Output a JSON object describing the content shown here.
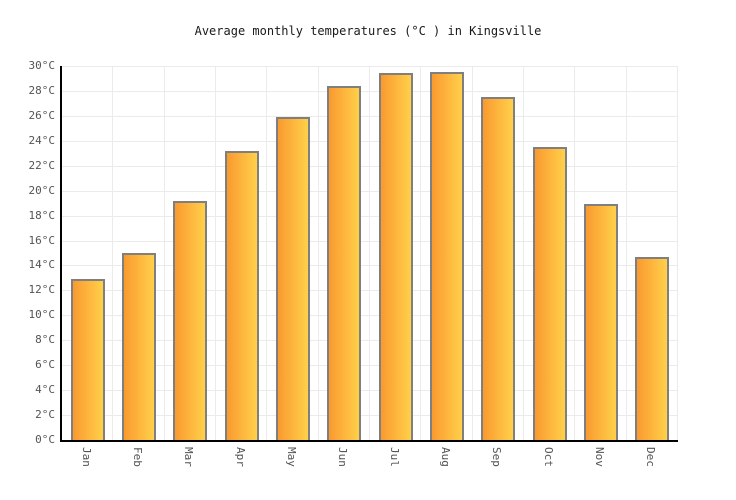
{
  "chart_data": {
    "type": "bar",
    "title": "Average monthly temperatures (°C ) in Kingsville",
    "categories": [
      "Jan",
      "Feb",
      "Mar",
      "Apr",
      "May",
      "Jun",
      "Jul",
      "Aug",
      "Sep",
      "Oct",
      "Nov",
      "Dec"
    ],
    "values": [
      12.9,
      15.0,
      19.2,
      23.2,
      25.9,
      28.4,
      29.4,
      29.5,
      27.5,
      23.5,
      18.9,
      14.7
    ],
    "unit": "°C",
    "xlabel": "",
    "ylabel": "",
    "ylim": [
      0,
      30
    ],
    "y_tick_step": 2,
    "y_tick_labels": [
      "0°C",
      "2°C",
      "4°C",
      "6°C",
      "8°C",
      "10°C",
      "12°C",
      "14°C",
      "16°C",
      "18°C",
      "20°C",
      "22°C",
      "24°C",
      "26°C",
      "28°C",
      "30°C"
    ],
    "grid": true,
    "legend_position": "none",
    "colors": {
      "bar_gradient_left": "#fa9a30",
      "bar_gradient_right": "#ffd04a",
      "bar_border": "#7f7f7f",
      "grid_line": "#ebebeb",
      "axis_line": "#000000",
      "tick_label": "#545454",
      "title_text": "#1a1a1a",
      "background": "#ffffff"
    }
  }
}
